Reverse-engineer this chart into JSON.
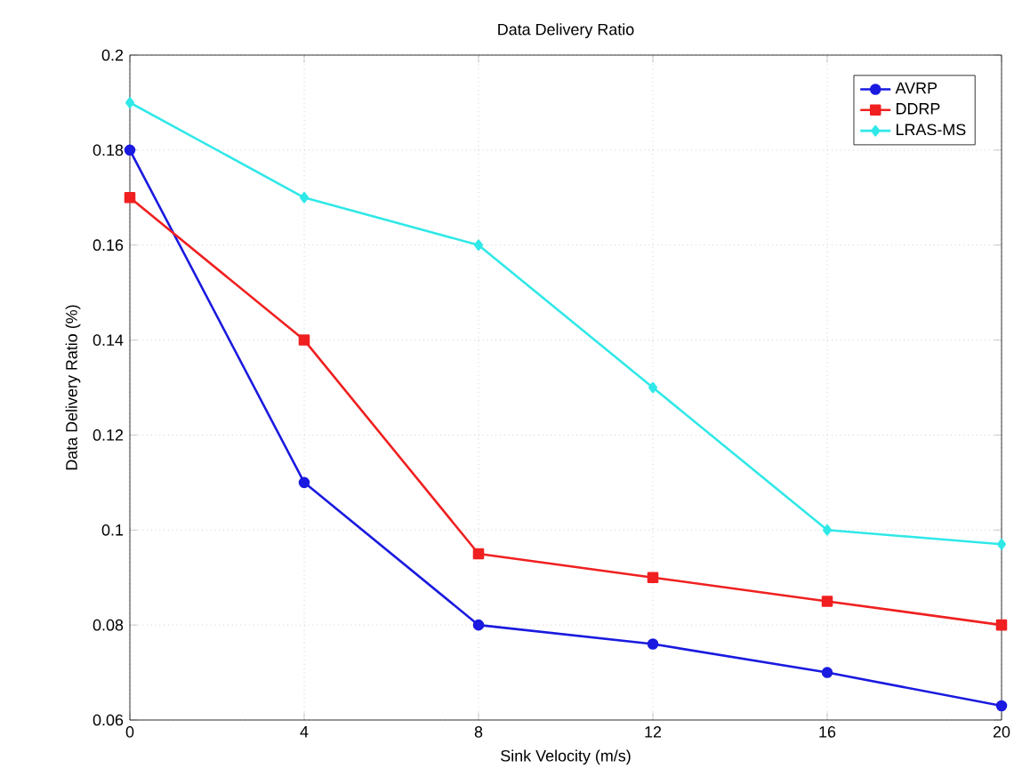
{
  "chart_data": {
    "type": "line",
    "title": "Data Delivery Ratio",
    "xlabel": "Sink Velocity (m/s)",
    "ylabel": "Data Delivery Ratio (%)",
    "x": [
      0,
      4,
      8,
      12,
      16,
      20
    ],
    "series": [
      {
        "name": "AVRP",
        "color": "#1a1ae0",
        "marker": "circle",
        "values": [
          0.18,
          0.11,
          0.08,
          0.076,
          0.07,
          0.063
        ]
      },
      {
        "name": "DDRP",
        "color": "#f02020",
        "marker": "square",
        "values": [
          0.17,
          0.14,
          0.095,
          0.09,
          0.085,
          0.08
        ]
      },
      {
        "name": "LRAS-MS",
        "color": "#30e8e8",
        "marker": "diamond",
        "values": [
          0.19,
          0.17,
          0.16,
          0.13,
          0.1,
          0.097
        ]
      }
    ],
    "xlim": [
      0,
      20
    ],
    "ylim": [
      0.06,
      0.2
    ],
    "xticks": [
      0,
      4,
      8,
      12,
      16,
      20
    ],
    "yticks": [
      0.06,
      0.08,
      0.1,
      0.12,
      0.14,
      0.16,
      0.18,
      0.2
    ],
    "grid": true,
    "legend": "top right"
  }
}
